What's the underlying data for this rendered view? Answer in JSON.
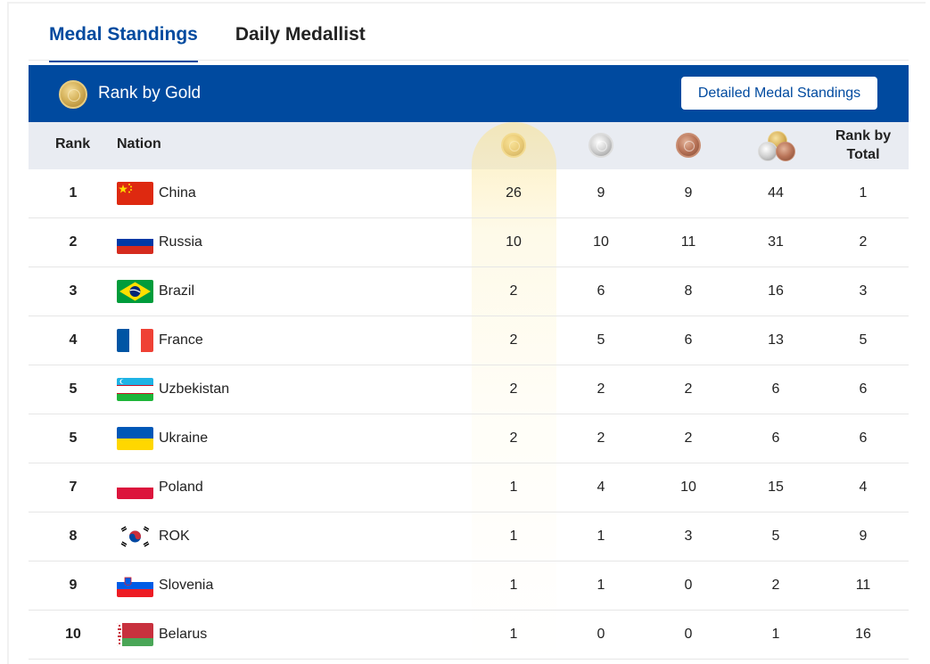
{
  "tabs": [
    {
      "label": "Medal Standings",
      "active": true
    },
    {
      "label": "Daily Medallist",
      "active": false
    }
  ],
  "header": {
    "title": "Rank by Gold",
    "button_label": "Detailed Medal Standings",
    "bg_color": "#004a9f"
  },
  "columns": {
    "rank": "Rank",
    "nation": "Nation",
    "gold_icon": "gold-medal-icon",
    "silver_icon": "silver-medal-icon",
    "bronze_icon": "bronze-medal-icon",
    "total_icon": "total-medals-icon",
    "rank_by_total_line1": "Rank by",
    "rank_by_total_line2": "Total"
  },
  "rows": [
    {
      "rank": "1",
      "nation": "China",
      "flag": "china-flag-icon",
      "gold": "26",
      "silver": "9",
      "bronze": "9",
      "total": "44",
      "rank_total": "1"
    },
    {
      "rank": "2",
      "nation": "Russia",
      "flag": "russia-flag-icon",
      "gold": "10",
      "silver": "10",
      "bronze": "11",
      "total": "31",
      "rank_total": "2"
    },
    {
      "rank": "3",
      "nation": "Brazil",
      "flag": "brazil-flag-icon",
      "gold": "2",
      "silver": "6",
      "bronze": "8",
      "total": "16",
      "rank_total": "3"
    },
    {
      "rank": "4",
      "nation": "France",
      "flag": "france-flag-icon",
      "gold": "2",
      "silver": "5",
      "bronze": "6",
      "total": "13",
      "rank_total": "5"
    },
    {
      "rank": "5",
      "nation": "Uzbekistan",
      "flag": "uzbekistan-flag-icon",
      "gold": "2",
      "silver": "2",
      "bronze": "2",
      "total": "6",
      "rank_total": "6"
    },
    {
      "rank": "5",
      "nation": "Ukraine",
      "flag": "ukraine-flag-icon",
      "gold": "2",
      "silver": "2",
      "bronze": "2",
      "total": "6",
      "rank_total": "6"
    },
    {
      "rank": "7",
      "nation": "Poland",
      "flag": "poland-flag-icon",
      "gold": "1",
      "silver": "4",
      "bronze": "10",
      "total": "15",
      "rank_total": "4"
    },
    {
      "rank": "8",
      "nation": "ROK",
      "flag": "korea-flag-icon",
      "gold": "1",
      "silver": "1",
      "bronze": "3",
      "total": "5",
      "rank_total": "9"
    },
    {
      "rank": "9",
      "nation": "Slovenia",
      "flag": "slovenia-flag-icon",
      "gold": "1",
      "silver": "1",
      "bronze": "0",
      "total": "2",
      "rank_total": "11"
    },
    {
      "rank": "10",
      "nation": "Belarus",
      "flag": "belarus-flag-icon",
      "gold": "1",
      "silver": "0",
      "bronze": "0",
      "total": "1",
      "rank_total": "16"
    }
  ]
}
